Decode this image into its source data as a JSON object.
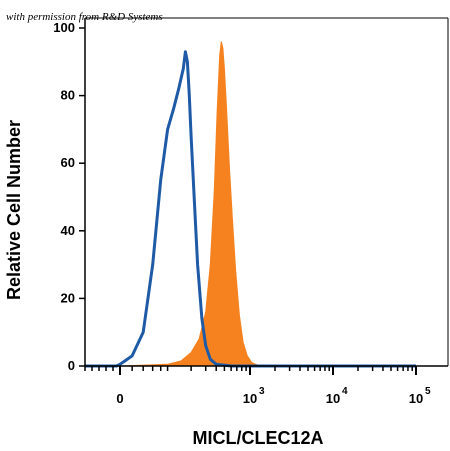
{
  "chart_data": {
    "type": "area",
    "credit": "with permission from R&D Systems",
    "xlabel": "MICL/CLEC12A",
    "ylabel": "Relative Cell Number",
    "ylim": [
      0,
      100
    ],
    "yticks": [
      0,
      20,
      40,
      60,
      80,
      100
    ],
    "x_scale": "biexponential",
    "xlim": [
      -100,
      100000
    ],
    "xticks": [
      {
        "base": "0",
        "exp": "",
        "x": 0
      },
      {
        "base": "10",
        "exp": "3",
        "x": 1000
      },
      {
        "base": "10",
        "exp": "4",
        "x": 10000
      },
      {
        "base": "10",
        "exp": "5",
        "x": 100000
      }
    ],
    "grid": false,
    "series": [
      {
        "role": "control",
        "style": "line",
        "color": "#1f5aa6",
        "points": [
          [
            -100,
            0
          ],
          [
            -10,
            0
          ],
          [
            0,
            0.5
          ],
          [
            20,
            3
          ],
          [
            40,
            10
          ],
          [
            60,
            30
          ],
          [
            80,
            55
          ],
          [
            100,
            70
          ],
          [
            120,
            76
          ],
          [
            140,
            82
          ],
          [
            160,
            88
          ],
          [
            170,
            93
          ],
          [
            180,
            90
          ],
          [
            190,
            80
          ],
          [
            200,
            68
          ],
          [
            220,
            48
          ],
          [
            240,
            30
          ],
          [
            270,
            14
          ],
          [
            300,
            6
          ],
          [
            340,
            2
          ],
          [
            400,
            0.5
          ],
          [
            600,
            0
          ],
          [
            100000,
            0
          ]
        ]
      },
      {
        "role": "stained",
        "style": "filled",
        "color": "#f5821f",
        "points": [
          [
            -100,
            0
          ],
          [
            0,
            0
          ],
          [
            100,
            0.5
          ],
          [
            150,
            1.5
          ],
          [
            200,
            4
          ],
          [
            250,
            8
          ],
          [
            300,
            16
          ],
          [
            340,
            30
          ],
          [
            380,
            52
          ],
          [
            410,
            75
          ],
          [
            440,
            92
          ],
          [
            460,
            96
          ],
          [
            480,
            94
          ],
          [
            500,
            88
          ],
          [
            530,
            76
          ],
          [
            570,
            60
          ],
          [
            620,
            44
          ],
          [
            680,
            28
          ],
          [
            750,
            15
          ],
          [
            830,
            7
          ],
          [
            930,
            3
          ],
          [
            1050,
            1
          ],
          [
            1300,
            0
          ],
          [
            100000,
            0
          ]
        ]
      }
    ]
  }
}
